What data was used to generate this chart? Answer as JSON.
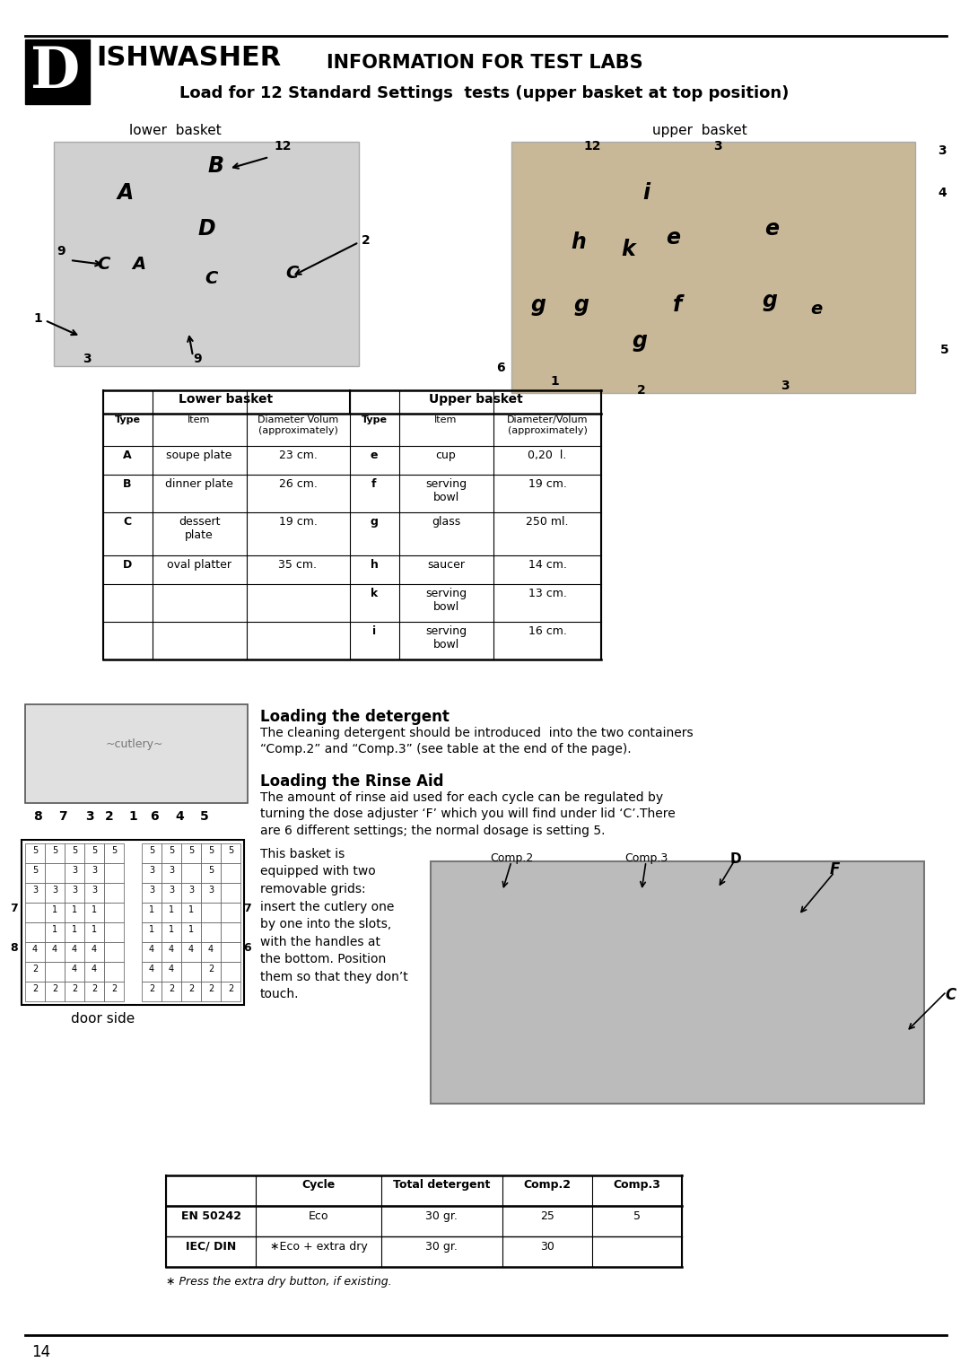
{
  "page_num": "14",
  "header_letter": "D",
  "header_text": "ISHWASHER",
  "title1": "INFORMATION FOR TEST LABS",
  "title2": "Load for 12 Standard Settings  tests (upper basket at top position)",
  "lower_basket_label": "lower  basket",
  "upper_basket_label": "upper  basket",
  "lower_table_data": [
    [
      "A",
      "soupe plate",
      "23 cm.",
      "e",
      "cup",
      "0,20  l."
    ],
    [
      "B",
      "dinner plate",
      "26 cm.",
      "f",
      "serving\nbowl",
      "19 cm."
    ],
    [
      "C",
      "dessert\nplate",
      "19 cm.",
      "g",
      "glass",
      "250 ml."
    ],
    [
      "D",
      "oval platter",
      "35 cm.",
      "h",
      "saucer",
      "14 cm."
    ],
    [
      "",
      "",
      "",
      "k",
      "serving\nbowl",
      "13 cm."
    ],
    [
      "",
      "",
      "",
      "i",
      "serving\nbowl",
      "16 cm."
    ]
  ],
  "loading_detergent_title": "Loading the detergent",
  "loading_detergent_body": "The cleaning detergent should be introduced  into the two containers\n“Comp.2” and “Comp.3” (see table at the end of the page).",
  "loading_rinse_title": "Loading the Rinse Aid",
  "loading_rinse_body": "The amount of rinse aid used for each cycle can be regulated by\nturning the dose adjuster ‘F’ which you will find under lid ‘C’.There\nare 6 different settings; the normal dosage is setting 5.",
  "basket_text": "This basket is\nequipped with two\nremovable grids:\ninsert the cutlery one\nby one into the slots,\nwith the handles at\nthe bottom. Position\nthem so that they don’t\ntouch.",
  "door_side_label": "door side",
  "bottom_table_data": [
    [
      "EN 50242",
      "Eco",
      "30 gr.",
      "25",
      "5"
    ],
    [
      "IEC/ DIN",
      "∗Eco + extra dry",
      "30 gr.",
      "30",
      ""
    ]
  ],
  "footnote": "∗ Press the extra dry button, if existing.",
  "bg_color": "#ffffff",
  "text_color": "#000000",
  "grid_left": [
    [
      "5",
      "5",
      "5",
      "5",
      "5"
    ],
    [
      "5",
      "",
      "3",
      "3",
      ""
    ],
    [
      "3",
      "3",
      "3",
      "3",
      ""
    ],
    [
      "",
      "1",
      "1",
      "1",
      ""
    ],
    [
      "",
      "1",
      "1",
      "1",
      ""
    ],
    [
      "4",
      "4",
      "4",
      "4",
      ""
    ],
    [
      "2",
      "",
      "4",
      "4",
      ""
    ],
    [
      "2",
      "2",
      "2",
      "2",
      "2"
    ]
  ],
  "grid_right": [
    [
      "5",
      "5",
      "5",
      "5",
      "5"
    ],
    [
      "3",
      "3",
      "",
      "5",
      ""
    ],
    [
      "3",
      "3",
      "3",
      "3",
      ""
    ],
    [
      "1",
      "1",
      "1",
      "",
      ""
    ],
    [
      "1",
      "1",
      "1",
      "",
      ""
    ],
    [
      "4",
      "4",
      "4",
      "4",
      ""
    ],
    [
      "4",
      "4",
      "",
      "2",
      ""
    ],
    [
      "2",
      "2",
      "2",
      "2",
      "2"
    ]
  ]
}
